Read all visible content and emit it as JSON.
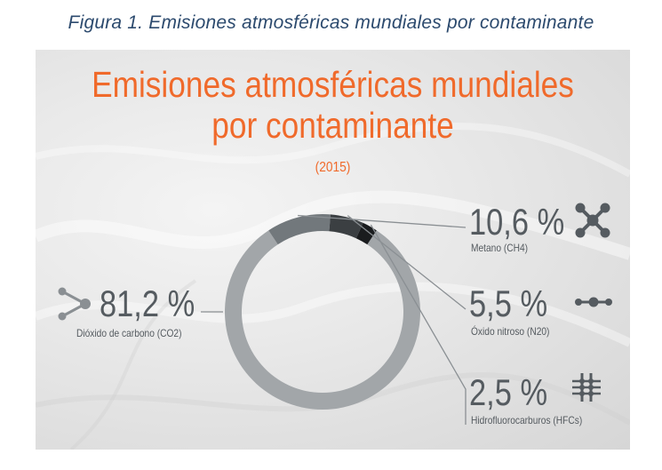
{
  "caption": "Figura 1. Emisiones atmosféricas mundiales por contaminante",
  "header": {
    "title_line1": "Emisiones atmosféricas mundiales",
    "title_line2": "por contaminante",
    "year": "(2015)"
  },
  "colors": {
    "title": "#f06a2b",
    "text": "#555b60",
    "co2": "#a2a6a9",
    "ch4": "#72787c",
    "n2o": "#3b3f42",
    "hfc": "#1a1c1e"
  },
  "chart_data": {
    "type": "pie",
    "style": "donut",
    "title": "Emisiones atmosféricas mundiales por contaminante",
    "subtitle": "(2015)",
    "slices": [
      {
        "label": "Dióxido de carbono (CO2)",
        "display": "81,2 %",
        "value": 81.2,
        "color": "#a2a6a9",
        "icon": "co2-molecule-icon"
      },
      {
        "label": "Metano (CH4)",
        "display": "10,6 %",
        "value": 10.6,
        "color": "#72787c",
        "icon": "ch4-molecule-icon"
      },
      {
        "label": "Óxido nitroso (N20)",
        "display": "5,5 %",
        "value": 5.5,
        "color": "#3b3f42",
        "icon": "n2o-molecule-icon"
      },
      {
        "label": "Hidrofluorocarburos (HFCs)",
        "display": "2,5 %",
        "value": 2.5,
        "color": "#1a1c1e",
        "icon": "hfc-molecule-icon"
      }
    ]
  }
}
